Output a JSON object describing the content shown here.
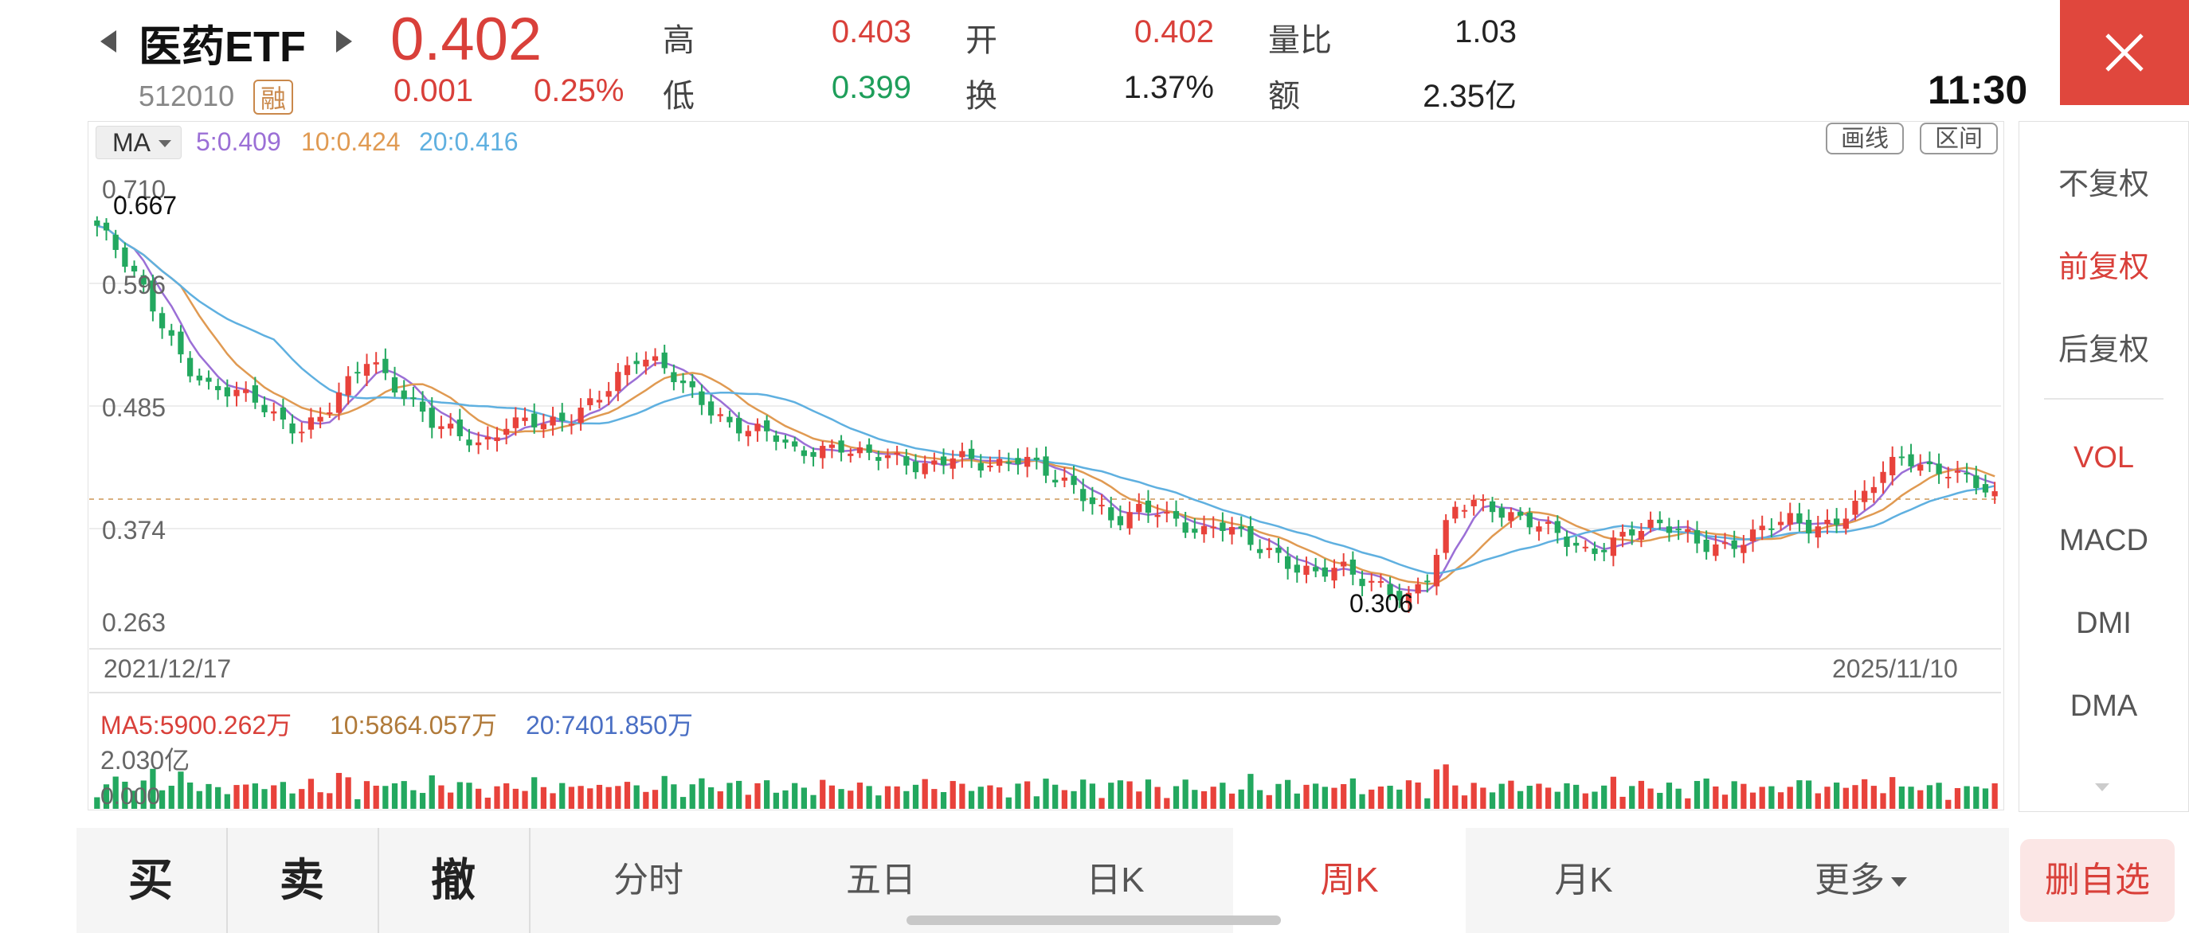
{
  "header": {
    "name": "医药ETF",
    "code": "512010",
    "rong_badge": "融",
    "price": "0.402",
    "change_abs": "0.001",
    "change_pct": "0.25%",
    "quote": {
      "high_label": "高",
      "high": "0.403",
      "open_label": "开",
      "open": "0.402",
      "vol_ratio_label": "量比",
      "vol_ratio": "1.03",
      "low_label": "低",
      "low": "0.399",
      "turnover_label": "换",
      "turnover": "1.37%",
      "amount_label": "额",
      "amount": "2.35亿"
    },
    "time": "11:30"
  },
  "chart": {
    "ma_selector": "MA",
    "ma_legend": {
      "ma5": "5:0.409",
      "ma10": "10:0.424",
      "ma20": "20:0.416"
    },
    "tools": {
      "draw": "画线",
      "range": "区间"
    },
    "y_labels": [
      "0.710",
      "0.596",
      "0.485",
      "0.374",
      "0.263"
    ],
    "max_label": "0.667",
    "min_label": "0.306",
    "date_start": "2021/12/17",
    "date_end": "2025/11/10",
    "vol_legend": {
      "ma5": "MA5:5900.262万",
      "ma10": "10:5864.057万",
      "ma20": "20:7401.850万"
    },
    "vol_y_top": "2.030亿",
    "vol_y_bottom": "0.000",
    "colors": {
      "up": "#e8423b",
      "down": "#23a85f",
      "ma5": "#9b6fd6",
      "ma10": "#e09a52",
      "ma20": "#5fb0e0"
    }
  },
  "chart_data": {
    "type": "candlestick",
    "title": "",
    "x_range": [
      "2021/12/17",
      "2025/11/10"
    ],
    "ylim": [
      0.263,
      0.71
    ],
    "close_trend": [
      0.66,
      0.63,
      0.6,
      0.565,
      0.53,
      0.505,
      0.5,
      0.495,
      0.48,
      0.47,
      0.48,
      0.505,
      0.535,
      0.515,
      0.495,
      0.47,
      0.46,
      0.45,
      0.475,
      0.48,
      0.47,
      0.475,
      0.495,
      0.52,
      0.54,
      0.525,
      0.505,
      0.49,
      0.475,
      0.47,
      0.46,
      0.44,
      0.45,
      0.455,
      0.445,
      0.44,
      0.43,
      0.435,
      0.45,
      0.435,
      0.43,
      0.44,
      0.43,
      0.42,
      0.4,
      0.375,
      0.39,
      0.395,
      0.38,
      0.37,
      0.375,
      0.36,
      0.355,
      0.34,
      0.33,
      0.335,
      0.325,
      0.322,
      0.31,
      0.33,
      0.39,
      0.4,
      0.395,
      0.385,
      0.375,
      0.36,
      0.35,
      0.365,
      0.375,
      0.375,
      0.37,
      0.36,
      0.36,
      0.365,
      0.375,
      0.38,
      0.375,
      0.385,
      0.4,
      0.425,
      0.44,
      0.432,
      0.432,
      0.42,
      0.4
    ],
    "max": 0.667,
    "min": 0.306,
    "last": 0.402,
    "ma": {
      "MA5": 0.409,
      "MA10": 0.424,
      "MA20": 0.416
    },
    "volume_ma": {
      "MA5": "5900.262万",
      "MA10": "5864.057万",
      "MA20": "7401.850万"
    },
    "volume_max": "2.030亿"
  },
  "right_panel": {
    "items": [
      "不复权",
      "前复权",
      "后复权",
      "VOL",
      "MACD",
      "DMI",
      "DMA"
    ]
  },
  "bottom": {
    "buy": "买",
    "sell": "卖",
    "cancel": "撤",
    "periods": [
      "分时",
      "五日",
      "日K",
      "周K",
      "月K",
      "更多"
    ],
    "delete": "删自选"
  }
}
